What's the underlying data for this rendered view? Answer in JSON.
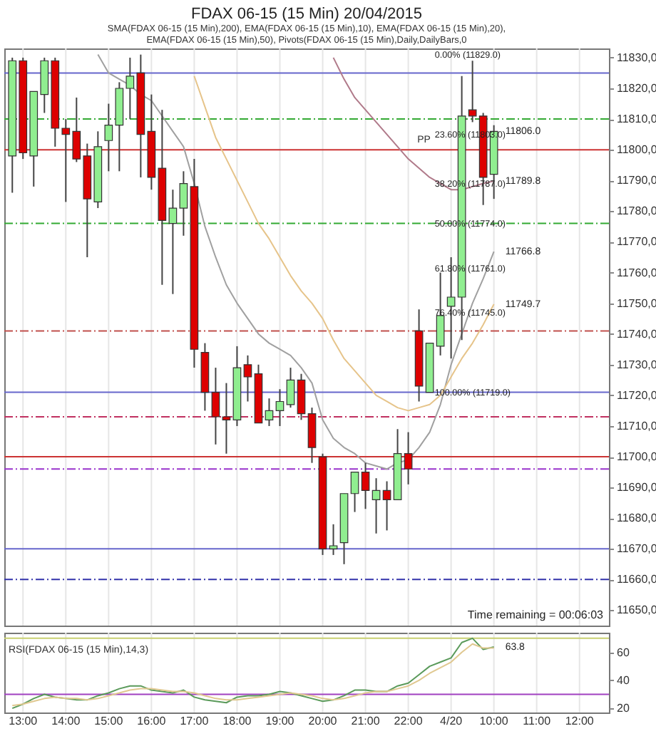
{
  "chart_data": [
    {
      "type": "candlestick",
      "title": "FDAX 06-15 (15 Min)  20/04/2015",
      "subtitle": "SMA(FDAX 06-15 (15 Min),200), EMA(FDAX 06-15 (15 Min),10), EMA(FDAX 06-15 (15 Min),20), EMA(FDAX 06-15 (15 Min),50), Pivots(FDAX 06-15 (15 Min),Daily,DailyBars,0",
      "categories": [
        null,
        "13:00",
        null,
        null,
        null,
        "14:00",
        null,
        null,
        null,
        "15:00",
        null,
        null,
        null,
        "16:00",
        null,
        null,
        null,
        "17:00",
        null,
        null,
        null,
        "18:00",
        null,
        null,
        null,
        "19:00",
        null,
        null,
        null,
        "20:00",
        null,
        null,
        null,
        "21:00",
        null,
        null,
        null,
        "22:00",
        null,
        null,
        null,
        "4/20",
        null,
        null,
        null,
        "10:00",
        null,
        null,
        null,
        "11:00",
        null,
        null,
        null,
        "12:00",
        null,
        null
      ],
      "ohlc": [
        [
          11798,
          11830,
          11786,
          11829
        ],
        [
          11829,
          11830,
          11797,
          11799
        ],
        [
          11798,
          11819,
          11788,
          11819
        ],
        [
          11818,
          11830,
          11812,
          11829
        ],
        [
          11829,
          11830,
          11801,
          11807
        ],
        [
          11807,
          11810,
          11783,
          11805
        ],
        [
          11806,
          11817,
          11796,
          11797
        ],
        [
          11798,
          11802,
          11765,
          11784
        ],
        [
          11783,
          11806,
          11781,
          11801
        ],
        [
          11803,
          11815,
          11793,
          11808
        ],
        [
          11808,
          11822,
          11793,
          11820
        ],
        [
          11820,
          11830,
          11810,
          11824
        ],
        [
          11825,
          11831,
          11791,
          11805
        ],
        [
          11806,
          11818,
          11787,
          11791
        ],
        [
          11794,
          11813,
          11756,
          11777
        ],
        [
          11776,
          11787,
          11753,
          11781
        ],
        [
          11781,
          11793,
          11772,
          11789
        ],
        [
          11788,
          11797,
          11729,
          11735
        ],
        [
          11734,
          11737,
          11715,
          11721
        ],
        [
          11721,
          11729,
          11704,
          11713
        ],
        [
          11713,
          11724,
          11701,
          11712
        ],
        [
          11712,
          11736,
          11710,
          11729
        ],
        [
          11730,
          11733,
          11718,
          11726
        ],
        [
          11727,
          11730,
          11711,
          11711
        ],
        [
          11712,
          11719,
          11710,
          11715
        ],
        [
          11715,
          11722,
          11710,
          11718
        ],
        [
          11717,
          11729,
          11716,
          11725
        ],
        [
          11725,
          11727,
          11712,
          11714
        ],
        [
          11714,
          11716,
          11698,
          11703
        ],
        [
          11700,
          11701,
          11668,
          11670
        ],
        [
          11670,
          11678,
          11668,
          11671
        ],
        [
          11672,
          11688,
          11665,
          11688
        ],
        [
          11688,
          11695,
          11682,
          11695
        ],
        [
          11695,
          11698,
          11683,
          11689
        ],
        [
          11686,
          11693,
          11675,
          11689
        ],
        [
          11689,
          11692,
          11676,
          11686
        ],
        [
          11686,
          11709,
          11686,
          11701
        ],
        [
          11701,
          11708,
          11691,
          11696
        ],
        [
          11741,
          11748,
          11718,
          11723
        ],
        [
          11721,
          11737,
          11721,
          11737
        ],
        [
          11736,
          11760,
          11733,
          11746
        ],
        [
          11749,
          11765,
          11732,
          11752
        ],
        [
          11752,
          11824,
          11738,
          11811
        ],
        [
          11813,
          11829,
          11809,
          11811
        ],
        [
          11811,
          11812,
          11782,
          11791
        ],
        [
          11792,
          11808,
          11784,
          11806
        ],
        null,
        null,
        null,
        null,
        null,
        null,
        null,
        null,
        null,
        null
      ],
      "colors": [
        "#90ee90",
        "#dd0000",
        "#90ee90",
        "#90ee90",
        "#dd0000",
        "#dd0000",
        "#dd0000",
        "#dd0000",
        "#90ee90",
        "#90ee90",
        "#90ee90",
        "#90ee90",
        "#dd0000",
        "#dd0000",
        "#dd0000",
        "#90ee90",
        "#90ee90",
        "#dd0000",
        "#dd0000",
        "#dd0000",
        "#dd0000",
        "#90ee90",
        "#dd0000",
        "#dd0000",
        "#90ee90",
        "#90ee90",
        "#90ee90",
        "#dd0000",
        "#dd0000",
        "#dd0000",
        "#90ee90",
        "#90ee90",
        "#90ee90",
        "#dd0000",
        "#90ee90",
        "#dd0000",
        "#90ee90",
        "#dd0000",
        "#dd0000",
        "#90ee90",
        "#90ee90",
        "#90ee90",
        "#90ee90",
        "#dd0000",
        "#dd0000",
        "#90ee90",
        null,
        null,
        null,
        null,
        null,
        null,
        null,
        null,
        null,
        null
      ],
      "series": [
        {
          "type": "line",
          "color": "#a0a0a0",
          "value_labels": [
            null,
            null,
            null,
            null,
            null,
            null,
            null,
            null,
            null,
            null,
            null,
            null,
            null,
            null,
            null,
            null,
            null,
            null,
            null,
            null,
            null,
            null,
            null,
            null,
            null,
            null,
            null,
            null,
            null,
            null,
            null,
            null,
            null,
            null,
            null,
            null,
            null,
            null,
            null,
            null,
            null,
            null,
            null,
            null,
            null,
            "11766.8",
            null,
            null,
            null,
            null,
            null,
            null,
            null,
            null,
            null,
            null
          ],
          "values": [
            null,
            null,
            null,
            null,
            null,
            null,
            null,
            null,
            11831,
            11825,
            11823,
            11821,
            11818,
            11816,
            11811,
            11806,
            11801,
            11789,
            11775,
            11765,
            11756,
            11750,
            11745,
            11740,
            11737,
            11735,
            11733,
            11729,
            11724,
            11712,
            11706,
            11703,
            11701,
            11698,
            11697,
            11696,
            11698,
            11699,
            11703,
            11708,
            11717,
            11730,
            11740,
            11750,
            11758,
            11766.8,
            null,
            null,
            null,
            null,
            null,
            null,
            null,
            null,
            null,
            null
          ]
        },
        {
          "type": "line",
          "color": "#e6c48a",
          "value_labels": [
            null,
            null,
            null,
            null,
            null,
            null,
            null,
            null,
            null,
            null,
            null,
            null,
            null,
            null,
            null,
            null,
            null,
            null,
            null,
            null,
            null,
            null,
            null,
            null,
            null,
            null,
            null,
            null,
            null,
            null,
            null,
            null,
            null,
            null,
            null,
            null,
            null,
            null,
            null,
            null,
            null,
            null,
            null,
            null,
            null,
            "11749.7",
            null,
            null,
            null,
            null,
            null,
            null,
            null,
            null,
            null,
            null
          ],
          "values": [
            null,
            null,
            null,
            null,
            null,
            null,
            null,
            null,
            null,
            null,
            null,
            null,
            null,
            null,
            null,
            null,
            null,
            11824,
            11814,
            11804,
            11797,
            11790,
            11783,
            11776,
            11771,
            11765,
            11759,
            11754,
            11750,
            11745,
            11738,
            11732,
            11728,
            11724,
            11720,
            11718,
            11716,
            11715,
            11716,
            11717,
            11720,
            11726,
            11732,
            11737,
            11743,
            11749.7,
            null,
            null,
            null,
            null,
            null,
            null,
            null,
            null,
            null,
            null
          ]
        },
        {
          "type": "line",
          "color": "#b07a8a",
          "value_labels": [
            null,
            null,
            null,
            null,
            null,
            null,
            null,
            null,
            null,
            null,
            null,
            null,
            null,
            null,
            null,
            null,
            null,
            null,
            null,
            null,
            null,
            null,
            null,
            null,
            null,
            null,
            null,
            null,
            null,
            null,
            null,
            null,
            null,
            null,
            null,
            null,
            null,
            null,
            null,
            null,
            null,
            null,
            null,
            null,
            null,
            "11789.8",
            null,
            null,
            null,
            null,
            null,
            null,
            null,
            null,
            null,
            null
          ],
          "values": [
            null,
            null,
            null,
            null,
            null,
            null,
            null,
            null,
            null,
            null,
            null,
            null,
            null,
            null,
            null,
            null,
            null,
            null,
            null,
            null,
            null,
            null,
            null,
            null,
            null,
            null,
            null,
            null,
            null,
            null,
            11830,
            11823,
            11817,
            11813,
            11809,
            11805,
            11801,
            11797,
            11794,
            11791,
            11789,
            11787,
            11787,
            11788,
            11789,
            11789.8,
            null,
            null,
            null,
            null,
            null,
            null,
            null,
            null,
            null,
            null
          ]
        }
      ],
      "ylim": [
        11645,
        11833
      ],
      "yticks": [
        {
          "value": 11650,
          "label": "11650,0"
        },
        {
          "value": 11660,
          "label": "11660,0"
        },
        {
          "value": 11670,
          "label": "11670,0"
        },
        {
          "value": 11680,
          "label": "11680,0"
        },
        {
          "value": 11690,
          "label": "11690,0"
        },
        {
          "value": 11700,
          "label": "11700,0"
        },
        {
          "value": 11710,
          "label": "11710,0"
        },
        {
          "value": 11720,
          "label": "11720,0"
        },
        {
          "value": 11730,
          "label": "11730,0"
        },
        {
          "value": 11740,
          "label": "11740,0"
        },
        {
          "value": 11750,
          "label": "11750,0"
        },
        {
          "value": 11760,
          "label": "11760,0"
        },
        {
          "value": 11770,
          "label": "11770,0"
        },
        {
          "value": 11780,
          "label": "11780,0"
        },
        {
          "value": 11790,
          "label": "11790,0"
        },
        {
          "value": 11800,
          "label": "11800,0"
        },
        {
          "value": 11810,
          "label": "11810,0"
        },
        {
          "value": 11820,
          "label": "11820,0"
        },
        {
          "value": 11830,
          "label": "11830,0"
        }
      ],
      "tick_labels": "y",
      "grid": "x",
      "ref_lines": [
        {
          "axis": "y",
          "value": 11825,
          "color": "#6666cc",
          "line_style": "solid"
        },
        {
          "axis": "y",
          "value": 11810,
          "color": "#33aa33",
          "line_style": "dashed"
        },
        {
          "axis": "y",
          "value": 11800,
          "color": "#cc3333",
          "line_style": "solid",
          "label": "PP"
        },
        {
          "axis": "y",
          "value": 11776,
          "color": "#33aa33",
          "line_style": "dashed"
        },
        {
          "axis": "y",
          "value": 11741,
          "color": "#c0504d",
          "line_style": "dashed"
        },
        {
          "axis": "y",
          "value": 11721,
          "color": "#6666cc",
          "line_style": "solid"
        },
        {
          "axis": "y",
          "value": 11713,
          "color": "#c03060",
          "line_style": "dashed"
        },
        {
          "axis": "y",
          "value": 11700,
          "color": "#cc3333",
          "line_style": "solid"
        },
        {
          "axis": "y",
          "value": 11696,
          "color": "#9933cc",
          "line_style": "dashed"
        },
        {
          "axis": "y",
          "value": 11670,
          "color": "#6666cc",
          "line_style": "solid"
        },
        {
          "axis": "y",
          "value": 11660,
          "color": "#3333aa",
          "line_style": "dashed"
        }
      ],
      "annotations": [
        {
          "text": "0.00% (11829.0)",
          "y": 11829
        },
        {
          "text": "23.60% (11803.0)",
          "y": 11803
        },
        {
          "text": "38.20% (11787.0)",
          "y": 11787
        },
        {
          "text": "50.00% (11774.0)",
          "y": 11774
        },
        "61.80% (11761.0)",
        {
          "text": "76.40% (11745.0)",
          "y": 11745
        },
        {
          "text": "100.00% (11719.0)",
          "y": 11719
        },
        {
          "text": "11806.0",
          "x": "10:00",
          "y": 11806
        },
        "Time remaining = 00:06:03"
      ]
    },
    {
      "type": "line",
      "title": "RSI(FDAX 06-15 (15 Min),14,3)",
      "categories": [
        null,
        "13:00",
        null,
        null,
        null,
        "14:00",
        null,
        null,
        null,
        "15:00",
        null,
        null,
        null,
        "16:00",
        null,
        null,
        null,
        "17:00",
        null,
        null,
        null,
        "18:00",
        null,
        null,
        null,
        "19:00",
        null,
        null,
        null,
        "20:00",
        null,
        null,
        null,
        "21:00",
        null,
        null,
        null,
        "22:00",
        null,
        null,
        null,
        "4/20",
        null,
        null,
        null,
        "10:00",
        null,
        null,
        null,
        "11:00",
        null,
        null,
        null,
        "12:00",
        null,
        null
      ],
      "series": [
        {
          "color": "#5a9a5a",
          "value_labels": [
            null,
            null,
            null,
            null,
            null,
            null,
            null,
            null,
            null,
            null,
            null,
            null,
            null,
            null,
            null,
            null,
            null,
            null,
            null,
            null,
            null,
            null,
            null,
            null,
            null,
            null,
            null,
            null,
            null,
            null,
            null,
            null,
            null,
            null,
            null,
            null,
            null,
            null,
            null,
            null,
            null,
            null,
            null,
            null,
            null,
            "63.8",
            null,
            null,
            null,
            null,
            null,
            null,
            null,
            null,
            null,
            null
          ],
          "values": [
            20,
            23,
            27,
            30,
            28,
            27,
            26,
            26,
            29,
            31,
            34,
            36,
            36,
            33,
            32,
            31,
            33,
            28,
            26,
            25,
            24,
            28,
            29,
            29,
            30,
            32,
            31,
            29,
            27,
            25,
            26,
            29,
            33,
            33,
            32,
            32,
            36,
            38,
            44,
            50,
            53,
            56,
            67,
            70,
            62,
            63.8,
            null,
            null,
            null,
            null,
            null,
            null,
            null,
            null,
            null,
            null
          ]
        },
        {
          "color": "#e0c890",
          "values": [
            22,
            23,
            25,
            27,
            28,
            27,
            27,
            26,
            27,
            29,
            31,
            33,
            34,
            34,
            33,
            32,
            32,
            31,
            29,
            27,
            26,
            26,
            27,
            28,
            29,
            30,
            31,
            30,
            29,
            27,
            26,
            27,
            29,
            31,
            32,
            32,
            34,
            36,
            40,
            45,
            49,
            53,
            60,
            66,
            63,
            63,
            null,
            null,
            null,
            null,
            null,
            null,
            null,
            null,
            null,
            null
          ]
        }
      ],
      "ylim": [
        17,
        74
      ],
      "yticks": [
        20,
        40,
        60
      ],
      "grid": "x",
      "ref_lines": [
        {
          "axis": "y",
          "value": 70,
          "color": "#c8d070",
          "line_style": "solid"
        },
        {
          "axis": "y",
          "value": 30,
          "color": "#a040c0",
          "line_style": "solid"
        }
      ]
    }
  ]
}
